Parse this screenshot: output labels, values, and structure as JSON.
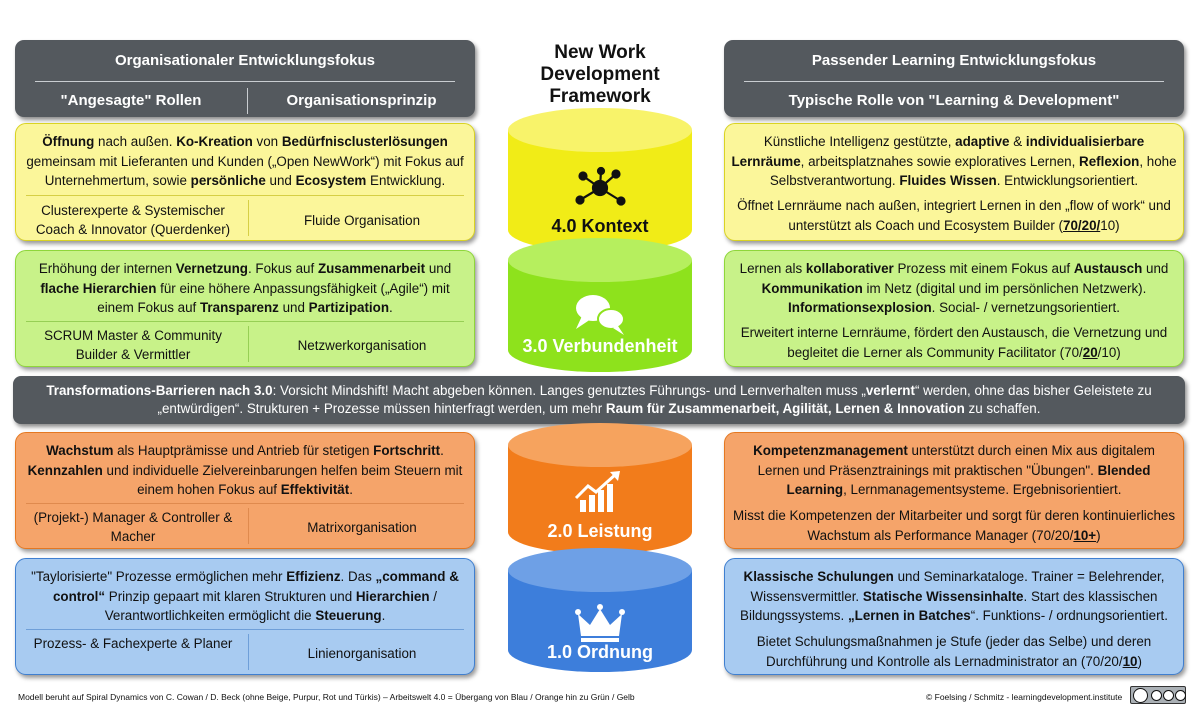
{
  "title": {
    "l1": "New Work",
    "l2": "Development",
    "l3": "Framework"
  },
  "left_header": {
    "title": "Organisationaler Entwicklungsfokus",
    "col1": "\"Angesagte\" Rollen",
    "col2": "Organisationsprinzip"
  },
  "right_header": {
    "title": "Passender Learning Entwicklungsfokus",
    "sub": "Typische Rolle von \"Learning & Development\""
  },
  "levels": {
    "l4": {
      "label": "4.0 Kontext",
      "icon": "network-icon",
      "color": "#f3ee1a",
      "left": {
        "t": [
          "Öffnung",
          " nach außen. ",
          "Ko-Kreation",
          " von ",
          "Bedürfnisclusterlösungen",
          " gemeinsam mit Lieferanten und Kunden („Open NewWork“) mit Fokus auf Unternehmertum, sowie ",
          "persönliche",
          " und ",
          "Ecosystem",
          " Entwicklung."
        ],
        "role": "Clusterexperte & Systemischer Coach & Innovator (Querdenker)",
        "org": "Fluide Organisation"
      },
      "right": {
        "t": [
          "Künstliche Intelligenz gestützte, ",
          "adaptive",
          " & ",
          "individualisierbare Lernräume",
          ", arbeitsplatznahes sowie exploratives Lernen, ",
          "Reflexion",
          ", hohe Selbstverantwortung. ",
          "Fluides Wissen",
          ". Entwicklungsorientiert."
        ],
        "r": [
          "Öffnet Lernräume nach außen, integriert Lernen in den „flow of work“ und unterstützt als Coach und Ecosystem Builder (",
          "70/20/",
          "10)"
        ]
      }
    },
    "l3": {
      "label": "3.0 Verbundenheit",
      "icon": "chat-bubbles-icon",
      "color": "#8fe31d",
      "left": {
        "t": [
          "Erhöhung der internen ",
          "Vernetzung",
          ". Fokus auf ",
          "Zusammenarbeit",
          " und ",
          "flache Hierarchien",
          " für eine höhere Anpassungsfähigkeit („Agile“) mit einem Fokus auf ",
          "Transparenz",
          " und ",
          "Partizipation",
          "."
        ],
        "role": "SCRUM Master & Community Builder & Vermittler",
        "org": "Netzwerkorganisation"
      },
      "right": {
        "t": [
          "Lernen als ",
          "kollaborativer",
          " Prozess mit einem Fokus auf ",
          "Austausch",
          " und ",
          "Kommunikation",
          " im Netz (digital und im persönlichen Netzwerk). ",
          "Informationsexplosion",
          ". Social- / vernetzungsorientiert."
        ],
        "r": [
          "Erweitert interne Lernräume, fördert den Austausch, die Vernetzung und begleitet die Lerner als Community Facilitator (70/",
          "20",
          "/10)"
        ]
      }
    },
    "l2": {
      "label": "2.0 Leistung",
      "icon": "growth-chart-icon",
      "color": "#f27d1c",
      "left": {
        "t": [
          "Wachstum",
          " als Hauptprämisse und Antrieb für stetigen ",
          "Fortschritt",
          ". ",
          "Kennzahlen",
          " und individuelle Zielvereinbarungen helfen beim Steuern mit einem hohen Fokus auf ",
          "Effektivität",
          "."
        ],
        "role": "(Projekt-) Manager & Controller & Macher",
        "org": "Matrixorganisation"
      },
      "right": {
        "t": [
          "Kompetenzmanagement",
          " unterstützt durch einen Mix aus digitalem Lernen und Präsenztrainings mit praktischen \"Übungen\". ",
          "Blended Learning",
          ", Lernmanagementsysteme. Ergebnisorientiert."
        ],
        "r": [
          "Misst die Kompetenzen der Mitarbeiter und sorgt für deren kontinuierliches Wachstum als Performance Manager (70/20/",
          "10+",
          ")"
        ]
      }
    },
    "l1": {
      "label": "1.0 Ordnung",
      "icon": "crown-icon",
      "color": "#3e7fdc",
      "left": {
        "t": [
          "\"Taylorisierte\" Prozesse ermöglichen mehr ",
          "Effizienz",
          ". Das ",
          "„command & control“",
          " Prinzip gepaart mit klaren Strukturen und ",
          "Hierarchien",
          " / Verantwortlichkeiten ermöglicht die ",
          "Steuerung",
          "."
        ],
        "role": "Prozess- & Fachexperte & Planer",
        "org": "Linienorganisation"
      },
      "right": {
        "t": [
          "Klassische Schulungen",
          " und Seminarkataloge. Trainer = Belehrender, Wissensvermittler. ",
          "Statische Wissensinhalte",
          ". Start des klassischen Bildungssystems. ",
          "„Lernen in Batches",
          "“. Funktions- / ordnungsorientiert."
        ],
        "r": [
          "Bietet Schulungsmaßnahmen je Stufe (jeder das Selbe) und deren Durchführung und Kontrolle als Lernadministrator an (70/20/",
          "10",
          ")"
        ]
      }
    }
  },
  "barrier": [
    "Transformations-Barrieren nach 3.0",
    ": Vorsicht Mindshift! Macht abgeben können. Langes genutztes Führungs- und Lernverhalten muss „",
    "verlernt",
    "“ werden, ohne das bisher Geleistete zu „entwürdigen“. Strukturen + Prozesse müssen hinterfragt werden, um mehr ",
    "Raum für Zusammenarbeit, Agilität, Lernen & Innovation",
    " zu schaffen."
  ],
  "footer": {
    "left": "Modell beruht auf Spiral Dynamics von C. Cowan / D. Beck (ohne Beige, Purpur, Rot und Türkis) – Arbeitswelt 4.0 = Übergang von Blau / Orange hin zu Grün / Gelb",
    "right": "© Foelsing / Schmitz - learningdevelopment.institute",
    "license": "cc by nc sa"
  }
}
